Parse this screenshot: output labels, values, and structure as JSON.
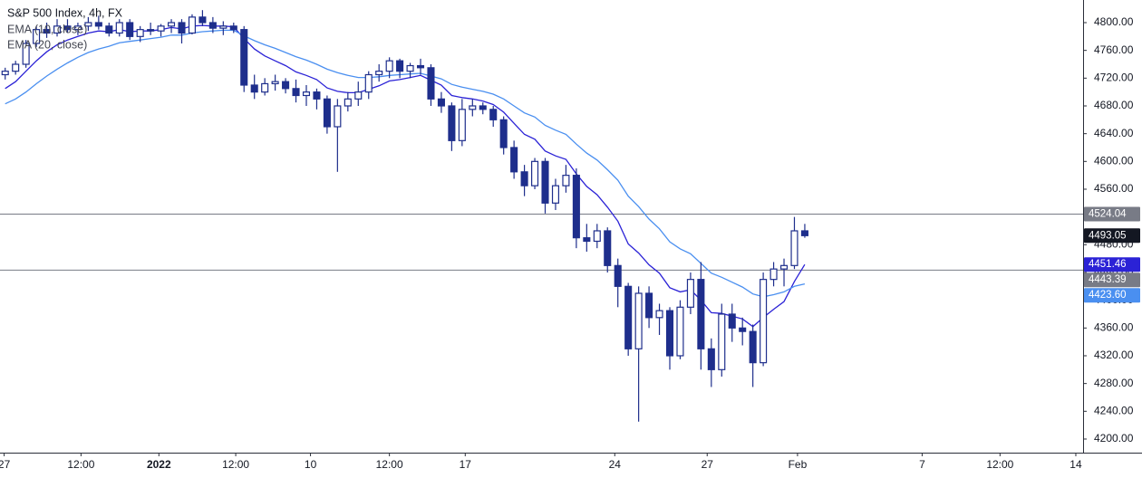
{
  "chart_data": {
    "type": "candlestick",
    "title": "S&P 500 Index, 4h, FX",
    "color": "#1e2e8c",
    "open": [
      4725,
      4730,
      4740,
      4770,
      4790,
      4785,
      4795,
      4790,
      4795,
      4800,
      4795,
      4785,
      4800,
      4780,
      4790,
      4788,
      4795,
      4800,
      4785,
      4808,
      4800,
      4792,
      4795,
      4790,
      4710,
      4700,
      4712,
      4715,
      4705,
      4695,
      4700,
      4690,
      4650,
      4680,
      4690,
      4700,
      4725,
      4730,
      4745,
      4730,
      4738,
      4735,
      4690,
      4680,
      4630,
      4675,
      4680,
      4675,
      4660,
      4620,
      4585,
      4565,
      4600,
      4540,
      4565,
      4580,
      4490,
      4485,
      4500,
      4450,
      4420,
      4330,
      4410,
      4375,
      4385,
      4320,
      4390,
      4430,
      4330,
      4300,
      4380,
      4360,
      4355,
      4310,
      4430,
      4445,
      4450,
      4500
    ],
    "high": [
      4735,
      4745,
      4775,
      4795,
      4800,
      4805,
      4805,
      4800,
      4808,
      4810,
      4800,
      4805,
      4805,
      4795,
      4800,
      4798,
      4805,
      4805,
      4812,
      4818,
      4808,
      4802,
      4800,
      4795,
      4725,
      4720,
      4725,
      4720,
      4718,
      4710,
      4705,
      4695,
      4690,
      4700,
      4715,
      4730,
      4740,
      4750,
      4748,
      4742,
      4748,
      4740,
      4700,
      4685,
      4690,
      4690,
      4685,
      4680,
      4665,
      4630,
      4595,
      4605,
      4605,
      4575,
      4595,
      4590,
      4510,
      4510,
      4505,
      4460,
      4425,
      4420,
      4420,
      4395,
      4390,
      4400,
      4440,
      4455,
      4345,
      4395,
      4395,
      4375,
      4365,
      4440,
      4455,
      4460,
      4520,
      4510
    ],
    "low": [
      4718,
      4725,
      4735,
      4765,
      4778,
      4780,
      4785,
      4782,
      4788,
      4790,
      4780,
      4780,
      4775,
      4772,
      4782,
      4780,
      4785,
      4770,
      4783,
      4795,
      4785,
      4782,
      4785,
      4700,
      4690,
      4695,
      4702,
      4698,
      4685,
      4680,
      4675,
      4640,
      4585,
      4672,
      4680,
      4690,
      4715,
      4720,
      4720,
      4720,
      4725,
      4680,
      4670,
      4615,
      4622,
      4665,
      4668,
      4650,
      4610,
      4575,
      4550,
      4560,
      4525,
      4530,
      4555,
      4475,
      4470,
      4475,
      4440,
      4390,
      4320,
      4225,
      4360,
      4350,
      4300,
      4315,
      4380,
      4300,
      4275,
      4290,
      4340,
      4335,
      4275,
      4305,
      4420,
      4420,
      4445,
      4490
    ],
    "close": [
      4730,
      4740,
      4770,
      4790,
      4785,
      4795,
      4790,
      4795,
      4800,
      4795,
      4785,
      4800,
      4780,
      4790,
      4788,
      4795,
      4800,
      4785,
      4808,
      4800,
      4792,
      4795,
      4790,
      4710,
      4700,
      4712,
      4715,
      4705,
      4695,
      4700,
      4690,
      4650,
      4680,
      4690,
      4700,
      4725,
      4730,
      4745,
      4730,
      4738,
      4735,
      4690,
      4680,
      4630,
      4675,
      4680,
      4675,
      4660,
      4620,
      4585,
      4565,
      4600,
      4540,
      4565,
      4580,
      4490,
      4485,
      4500,
      4450,
      4420,
      4330,
      4410,
      4375,
      4385,
      4320,
      4390,
      4430,
      4330,
      4300,
      4380,
      4360,
      4355,
      4310,
      4430,
      4445,
      4450,
      4500,
      4493.05
    ],
    "series": [
      {
        "name": "EMA (10, close)",
        "color": "#2b22d6",
        "values": [
          4705,
          4715,
          4730,
          4745,
          4758,
          4768,
          4775,
          4780,
          4785,
          4788,
          4787,
          4790,
          4787,
          4788,
          4788,
          4790,
          4793,
          4791,
          4795,
          4796,
          4795,
          4795,
          4794,
          4777,
          4762,
          4752,
          4745,
          4738,
          4729,
          4724,
          4718,
          4706,
          4701,
          4699,
          4699,
          4704,
          4709,
          4716,
          4718,
          4721,
          4724,
          4717,
          4710,
          4695,
          4692,
          4690,
          4687,
          4682,
          4671,
          4655,
          4639,
          4632,
          4615,
          4608,
          4603,
          4582,
          4564,
          4552,
          4534,
          4514,
          4481,
          4468,
          4451,
          4439,
          4418,
          4412,
          4415,
          4400,
          4382,
          4381,
          4377,
          4373,
          4362,
          4375,
          4387,
          4398,
          4427,
          4451.46
        ],
        "value_labels": [
          null,
          null,
          null,
          null,
          null,
          null,
          null,
          null,
          null,
          null,
          null,
          null,
          null,
          null,
          null,
          null,
          null,
          null,
          null,
          null,
          null,
          null,
          null,
          null,
          null,
          null,
          null,
          null,
          null,
          null,
          null,
          null,
          null,
          null,
          null,
          null,
          null,
          null,
          null,
          null,
          null,
          null,
          null,
          null,
          null,
          null,
          null,
          null,
          null,
          null,
          null,
          null,
          null,
          null,
          null,
          null,
          null,
          null,
          null,
          null,
          null,
          null,
          null,
          null,
          null,
          null,
          null,
          null,
          null,
          null,
          null,
          null,
          null,
          null,
          null,
          null,
          null,
          "4451.46"
        ]
      },
      {
        "name": "EMA (20, close)",
        "color": "#4a8ff0",
        "values": [
          4683,
          4690,
          4700,
          4712,
          4723,
          4733,
          4742,
          4750,
          4757,
          4762,
          4766,
          4771,
          4773,
          4775,
          4777,
          4779,
          4782,
          4782,
          4785,
          4787,
          4788,
          4789,
          4789,
          4781,
          4774,
          4768,
          4763,
          4757,
          4751,
          4746,
          4740,
          4733,
          4728,
          4724,
          4721,
          4721,
          4722,
          4724,
          4725,
          4726,
          4727,
          4723,
          4719,
          4711,
          4707,
          4704,
          4701,
          4697,
          4690,
          4680,
          4670,
          4664,
          4652,
          4645,
          4639,
          4625,
          4612,
          4602,
          4588,
          4573,
          4550,
          4535,
          4517,
          4503,
          4484,
          4474,
          4467,
          4453,
          4439,
          4433,
          4426,
          4419,
          4409,
          4405,
          4408,
          4412,
          4420,
          4423.6
        ],
        "value_labels": [
          null,
          null,
          null,
          null,
          null,
          null,
          null,
          null,
          null,
          null,
          null,
          null,
          null,
          null,
          null,
          null,
          null,
          null,
          null,
          null,
          null,
          null,
          null,
          null,
          null,
          null,
          null,
          null,
          null,
          null,
          null,
          null,
          null,
          null,
          null,
          null,
          null,
          null,
          null,
          null,
          null,
          null,
          null,
          null,
          null,
          null,
          null,
          null,
          null,
          null,
          null,
          null,
          null,
          null,
          null,
          null,
          null,
          null,
          null,
          null,
          null,
          null,
          null,
          null,
          null,
          null,
          null,
          null,
          null,
          null,
          null,
          null,
          null,
          null,
          null,
          null,
          null,
          "4423.60"
        ]
      }
    ],
    "levels": [
      4524.04,
      4443.39
    ],
    "level_color": "#787b86",
    "last_price_color": "#131722",
    "xlim": [
      -0.5,
      103.8
    ],
    "xticks": [
      {
        "value": -0.1,
        "label": "27"
      },
      {
        "value": 7.3,
        "label": "12:00"
      },
      {
        "value": 14.8,
        "label": "2022"
      },
      {
        "value": 22.2,
        "label": "12:00"
      },
      {
        "value": 29.4,
        "label": "10"
      },
      {
        "value": 37,
        "label": "12:00"
      },
      {
        "value": 44.3,
        "label": "17"
      },
      {
        "value": 58.7,
        "label": "24"
      },
      {
        "value": 67.6,
        "label": "27"
      },
      {
        "value": 76.3,
        "label": "Feb"
      },
      {
        "value": 88.3,
        "label": "7"
      },
      {
        "value": 95.8,
        "label": "12:00"
      },
      {
        "value": 103.1,
        "label": "14"
      }
    ],
    "ylim": [
      4180.4,
      4832.6
    ],
    "yticks": [
      {
        "value": 4200,
        "label": "4200.00"
      },
      {
        "value": 4240,
        "label": "4240.00"
      },
      {
        "value": 4280,
        "label": "4280.00"
      },
      {
        "value": 4320,
        "label": "4320.00"
      },
      {
        "value": 4360,
        "label": "4360.00"
      },
      {
        "value": 4400,
        "label": "4400.00"
      },
      {
        "value": 4440,
        "label": "4440.00"
      },
      {
        "value": 4480,
        "label": "4480.00"
      },
      {
        "value": 4520,
        "label": "4520.00"
      },
      {
        "value": 4560,
        "label": "4560.00"
      },
      {
        "value": 4600,
        "label": "4600.00"
      },
      {
        "value": 4640,
        "label": "4640.00"
      },
      {
        "value": 4680,
        "label": "4680.00"
      },
      {
        "value": 4720,
        "label": "4720.00"
      },
      {
        "value": 4760,
        "label": "4760.00"
      },
      {
        "value": 4800,
        "label": "4800.00"
      }
    ]
  }
}
